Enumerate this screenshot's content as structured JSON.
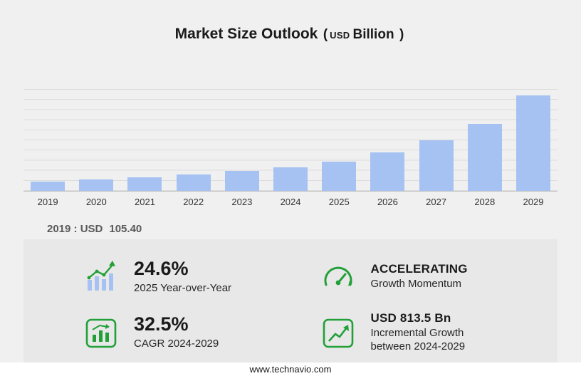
{
  "title": {
    "main": "Market Size Outlook",
    "open": "(",
    "currency": "USD",
    "unit": "Billion",
    "close": ")"
  },
  "chart_data": {
    "type": "bar",
    "title": "Market Size Outlook (USD Billion)",
    "categories": [
      "2019",
      "2020",
      "2021",
      "2022",
      "2023",
      "2024",
      "2025",
      "2026",
      "2027",
      "2028",
      "2029"
    ],
    "values": [
      105.4,
      127.5,
      153.3,
      184.5,
      222.0,
      263.8,
      328.7,
      433.4,
      571.4,
      753.3,
      1077.3
    ],
    "xlabel": "",
    "ylabel": "",
    "ylim": [
      0,
      1150
    ],
    "grid": "horizontal",
    "legend_position": "none",
    "bar_color": "#a6c2f2"
  },
  "annotation": {
    "prefix": "2019 : USD",
    "value": "105.40"
  },
  "stats": [
    {
      "icon": "bar-growth-icon",
      "value": "24.6%",
      "label": "2025 Year-over-Year"
    },
    {
      "icon": "speedometer-icon",
      "value": "ACCELERATING",
      "label": "Growth Momentum"
    },
    {
      "icon": "bar-chart-box-icon",
      "value": "32.5%",
      "label": "CAGR 2024-2029"
    },
    {
      "icon": "line-growth-icon",
      "value": "USD 813.5 Bn",
      "label": "Incremental Growth between 2024-2029"
    }
  ],
  "footer": {
    "url": "www.technavio.com"
  },
  "colors": {
    "background": "#f0f0f0",
    "panel": "#e8e8e8",
    "bar": "#a6c2f2",
    "green": "#21a038",
    "grid": "#dcdcdc"
  }
}
